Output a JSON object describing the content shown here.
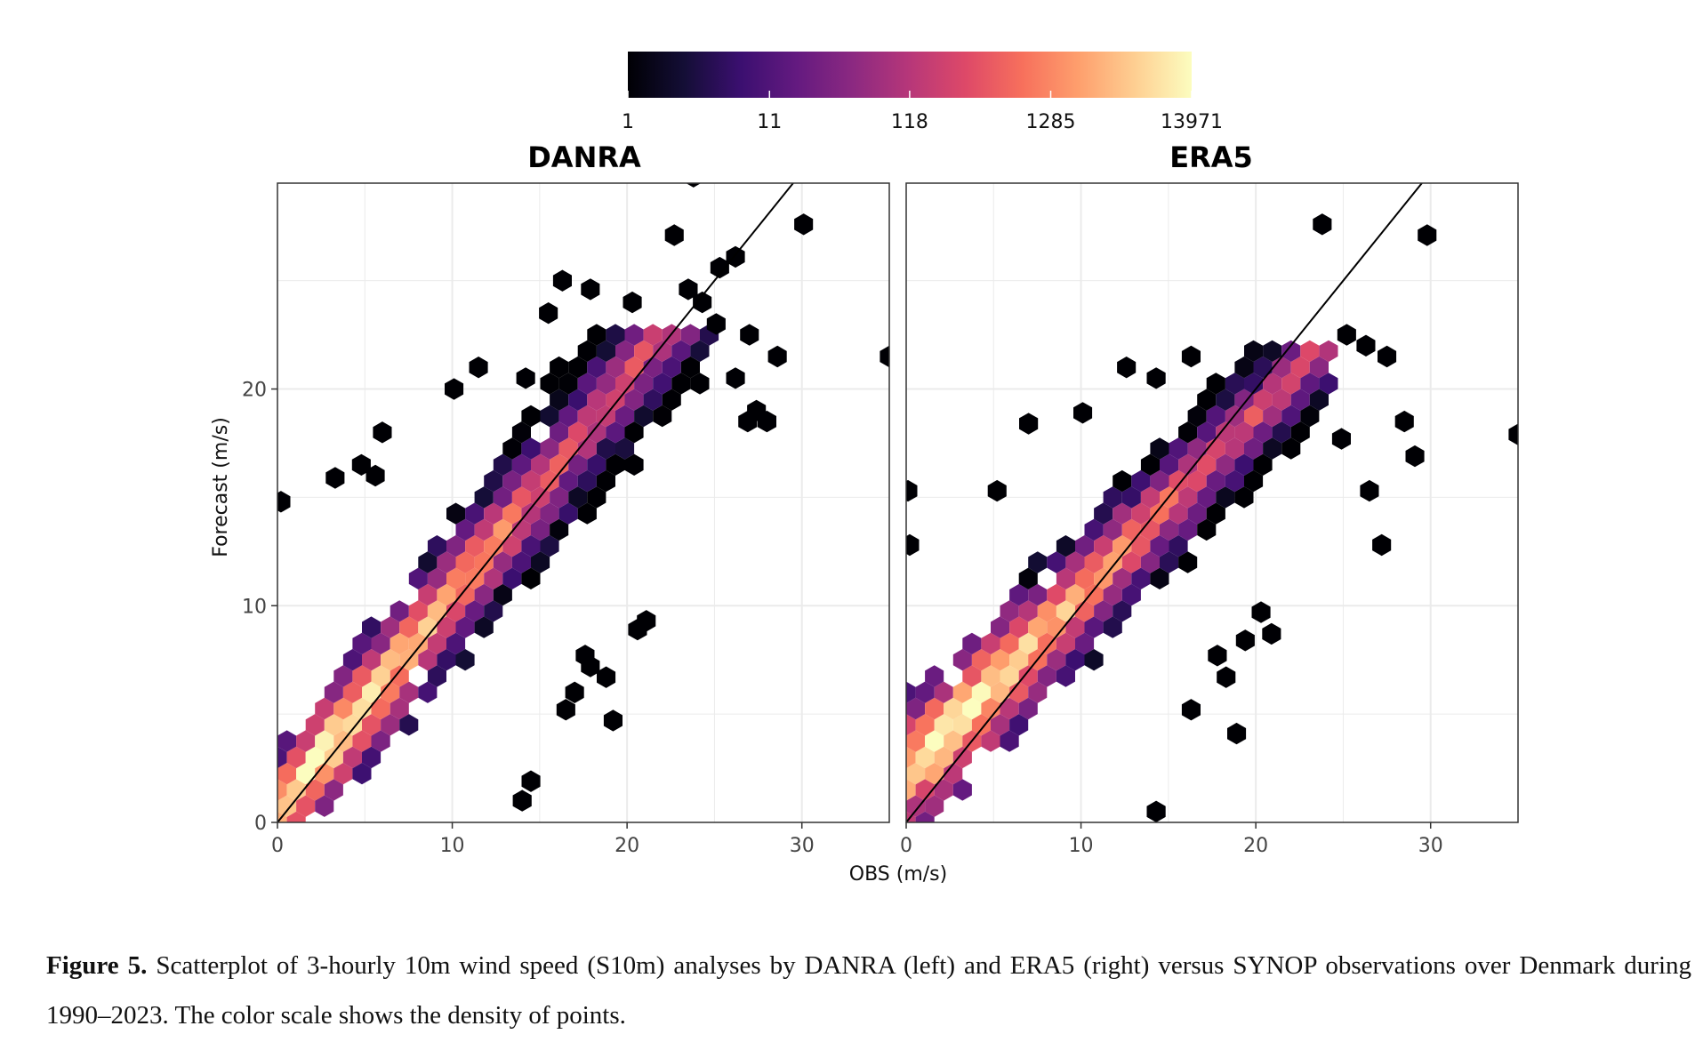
{
  "figure": {
    "caption_label": "Figure 5.",
    "caption_text": "Scatterplot of 3-hourly 10m wind speed (S10m) analyses by DANRA (left) and ERA5 (right) versus SYNOP observations over Denmark during 1990–2023. The color scale shows the density of points."
  },
  "chart_data": {
    "type": "hexbin",
    "colormap": "magma",
    "colorbar": {
      "scale": "log",
      "range": [
        1,
        13971
      ],
      "ticks": [
        "1",
        "11",
        "118",
        "1285",
        "13971"
      ]
    },
    "xlabel": "OBS (m/s)",
    "ylabel": "Forecast (m/s)",
    "xlim": [
      0,
      35
    ],
    "ylim": [
      0,
      29.5
    ],
    "xticks": [
      "0",
      "10",
      "20",
      "30"
    ],
    "yticks": [
      "0",
      "10",
      "20"
    ],
    "grid": true,
    "reference_line": "1:1",
    "panels": [
      {
        "title": "DANRA",
        "core": {
          "slope": 1.0,
          "intercept": 0.6,
          "spread_start": 2.2,
          "spread_end": 3.6,
          "x_max": 23.5,
          "y_max": 22.0,
          "bias_x": 0.0
        },
        "outliers": [
          [
            30.1,
            27.6
          ],
          [
            27.0,
            22.5
          ],
          [
            26.2,
            26.1
          ],
          [
            25.3,
            25.6
          ],
          [
            23.8,
            29.8
          ],
          [
            22.7,
            27.1
          ],
          [
            23.5,
            24.6
          ],
          [
            20.3,
            24.0
          ],
          [
            17.9,
            24.6
          ],
          [
            16.3,
            25.0
          ],
          [
            15.5,
            23.5
          ],
          [
            28.6,
            21.5
          ],
          [
            35.0,
            21.5
          ],
          [
            26.2,
            20.5
          ],
          [
            26.9,
            18.5
          ],
          [
            19.2,
            4.7
          ],
          [
            17.0,
            6.0
          ],
          [
            16.5,
            5.2
          ],
          [
            21.1,
            9.3
          ],
          [
            20.6,
            8.9
          ],
          [
            17.6,
            7.7
          ],
          [
            18.8,
            6.7
          ],
          [
            17.9,
            7.2
          ],
          [
            14.5,
            1.9
          ],
          [
            14.0,
            1.0
          ],
          [
            3.3,
            15.9
          ],
          [
            6.0,
            18.0
          ],
          [
            5.6,
            16.0
          ],
          [
            4.8,
            16.5
          ],
          [
            10.1,
            20.0
          ],
          [
            14.2,
            20.5
          ],
          [
            11.5,
            21.0
          ],
          [
            0.2,
            14.8
          ],
          [
            27.4,
            19.0
          ],
          [
            28.0,
            18.5
          ],
          [
            24.3,
            24.0
          ],
          [
            25.1,
            23.0
          ]
        ]
      },
      {
        "title": "ERA5",
        "core": {
          "slope": 0.83,
          "intercept": 2.3,
          "spread_start": 2.8,
          "spread_end": 2.9,
          "x_max": 23.0,
          "y_max": 21.6,
          "bias_x": 0.0
        },
        "outliers": [
          [
            23.8,
            27.6
          ],
          [
            29.8,
            27.1
          ],
          [
            35.0,
            17.9
          ],
          [
            28.5,
            18.5
          ],
          [
            29.1,
            16.9
          ],
          [
            27.5,
            21.5
          ],
          [
            26.3,
            22.0
          ],
          [
            25.2,
            22.5
          ],
          [
            19.4,
            8.4
          ],
          [
            18.3,
            6.7
          ],
          [
            18.9,
            4.1
          ],
          [
            14.3,
            0.5
          ],
          [
            16.3,
            5.2
          ],
          [
            20.9,
            8.7
          ],
          [
            20.3,
            9.7
          ],
          [
            17.8,
            7.7
          ],
          [
            27.2,
            12.8
          ],
          [
            26.5,
            15.3
          ],
          [
            24.9,
            17.7
          ],
          [
            5.2,
            15.3
          ],
          [
            7.0,
            18.4
          ],
          [
            10.1,
            18.9
          ],
          [
            0.1,
            15.3
          ],
          [
            0.2,
            12.8
          ],
          [
            16.3,
            21.5
          ],
          [
            12.6,
            21.0
          ],
          [
            14.3,
            20.5
          ]
        ]
      }
    ]
  }
}
